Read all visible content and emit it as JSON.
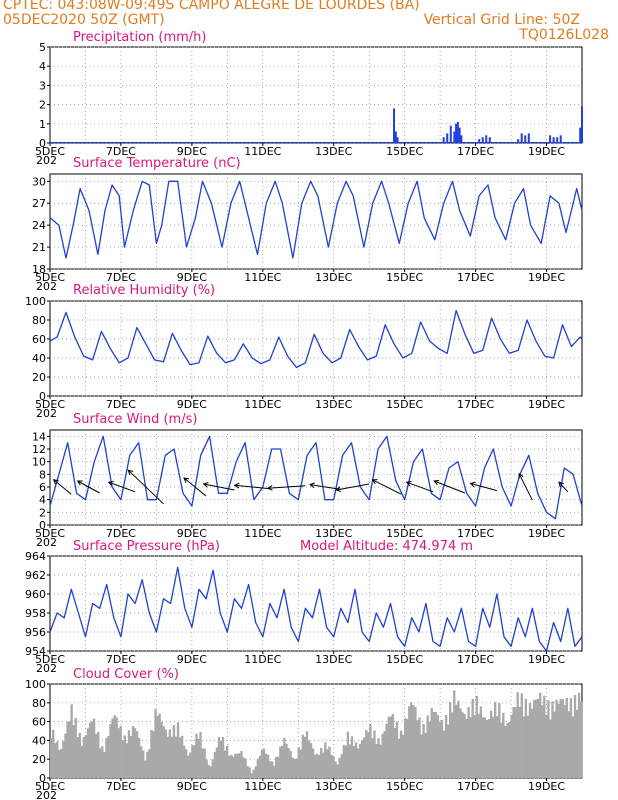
{
  "header": {
    "line1": "CPTEC:   043:08W-09:49S   CAMPO ALEGRE DE LOURDES (BA)",
    "line2_left": "05DEC2020 50Z (GMT)",
    "line2_right": "Vertical Grid Line: 50Z",
    "line3_right": "TQ0126L028"
  },
  "model_altitude_label": "Model Altitude: 474.974 m",
  "x_ticks": [
    "5DEC",
    "7DEC",
    "9DEC",
    "11DEC",
    "13DEC",
    "15DEC",
    "17DEC",
    "19DEC"
  ],
  "x_tick_partial": "202",
  "colors": {
    "header": "#e87a1e",
    "title": "#e2157f",
    "line": "#1f3fe0",
    "bars": "#1f3fe0",
    "cloud": "#a9a9a9"
  },
  "chart_data": [
    {
      "type": "bar",
      "title": "Precipitation (mm/h)",
      "ylim": [
        0,
        5
      ],
      "yticks": [
        "0",
        "1",
        "2",
        "3",
        "4",
        "5"
      ],
      "x": [
        14.7,
        14.75,
        14.8,
        16.1,
        16.2,
        16.3,
        16.4,
        16.45,
        16.5,
        16.55,
        16.6,
        17.1,
        17.2,
        17.3,
        17.4,
        18.2,
        18.3,
        18.4,
        18.5,
        19.1,
        19.2,
        19.3,
        19.4,
        19.95,
        20.0
      ],
      "values": [
        1.8,
        0.6,
        0.3,
        0.3,
        0.5,
        0.9,
        0.6,
        1.0,
        1.1,
        0.8,
        0.4,
        0.2,
        0.3,
        0.4,
        0.3,
        0.2,
        0.5,
        0.4,
        0.5,
        0.4,
        0.3,
        0.3,
        0.4,
        0.8,
        1.9
      ],
      "xlim": [
        5,
        20
      ]
    },
    {
      "type": "line",
      "title": "Surface Temperature (nC)",
      "ylim": [
        18,
        31
      ],
      "yticks": [
        "18",
        "21",
        "24",
        "27",
        "30"
      ],
      "xlim": [
        5,
        20
      ],
      "x": [
        5.0,
        5.25,
        5.45,
        5.65,
        5.85,
        6.1,
        6.35,
        6.55,
        6.75,
        6.95,
        7.1,
        7.35,
        7.6,
        7.8,
        8.0,
        8.15,
        8.35,
        8.6,
        8.85,
        9.1,
        9.3,
        9.55,
        9.85,
        10.1,
        10.35,
        10.55,
        10.85,
        11.1,
        11.35,
        11.55,
        11.85,
        12.1,
        12.35,
        12.55,
        12.85,
        13.1,
        13.35,
        13.55,
        13.85,
        14.1,
        14.35,
        14.55,
        14.85,
        15.1,
        15.35,
        15.55,
        15.85,
        16.1,
        16.35,
        16.55,
        16.85,
        17.1,
        17.35,
        17.55,
        17.85,
        18.1,
        18.35,
        18.55,
        18.85,
        19.1,
        19.35,
        19.55,
        19.85,
        20.0
      ],
      "y": [
        25,
        24,
        19.5,
        24,
        29,
        26,
        20,
        26,
        29.5,
        28,
        21,
        26,
        30,
        29.5,
        21.5,
        24,
        30,
        30,
        21,
        25,
        30,
        27,
        21,
        27,
        30,
        26,
        20,
        27,
        30,
        27,
        19.5,
        27,
        30,
        28,
        21,
        27,
        30,
        28,
        21,
        27,
        30,
        27,
        21.5,
        27,
        30,
        25,
        22,
        27,
        30,
        26,
        22.5,
        28,
        29.5,
        25,
        22,
        27,
        29,
        24,
        21.5,
        28,
        27,
        23,
        29,
        26
      ]
    },
    {
      "type": "line",
      "title": "Relative Humidity (%)",
      "ylim": [
        0,
        100
      ],
      "yticks": [
        "0",
        "20",
        "40",
        "60",
        "80",
        "100"
      ],
      "xlim": [
        5,
        20
      ],
      "x": [
        5.0,
        5.2,
        5.45,
        5.7,
        5.95,
        6.2,
        6.45,
        6.7,
        6.95,
        7.2,
        7.45,
        7.7,
        7.95,
        8.2,
        8.45,
        8.7,
        8.95,
        9.2,
        9.45,
        9.7,
        9.95,
        10.2,
        10.45,
        10.7,
        10.95,
        11.2,
        11.45,
        11.7,
        11.95,
        12.2,
        12.45,
        12.7,
        12.95,
        13.2,
        13.45,
        13.7,
        13.95,
        14.2,
        14.45,
        14.7,
        14.95,
        15.2,
        15.45,
        15.7,
        15.95,
        16.2,
        16.45,
        16.7,
        16.95,
        17.2,
        17.45,
        17.7,
        17.95,
        18.2,
        18.45,
        18.7,
        18.95,
        19.2,
        19.45,
        19.7,
        19.95,
        20.0
      ],
      "y": [
        58,
        62,
        88,
        62,
        42,
        38,
        68,
        50,
        35,
        40,
        72,
        55,
        38,
        36,
        66,
        48,
        33,
        35,
        63,
        45,
        35,
        38,
        55,
        40,
        34,
        38,
        62,
        42,
        30,
        35,
        65,
        45,
        35,
        40,
        70,
        52,
        38,
        42,
        75,
        55,
        40,
        45,
        78,
        58,
        50,
        45,
        90,
        65,
        45,
        48,
        82,
        60,
        45,
        48,
        80,
        58,
        42,
        40,
        75,
        52,
        62,
        60
      ]
    },
    {
      "type": "line",
      "title": "Surface Wind (m/s)",
      "ylim": [
        0,
        15
      ],
      "yticks": [
        "0",
        "2",
        "4",
        "6",
        "8",
        "10",
        "12",
        "14"
      ],
      "xlim": [
        5,
        20
      ],
      "x": [
        5.0,
        5.25,
        5.5,
        5.75,
        6.0,
        6.25,
        6.5,
        6.75,
        7.0,
        7.25,
        7.5,
        7.75,
        8.0,
        8.25,
        8.5,
        8.75,
        9.0,
        9.25,
        9.5,
        9.75,
        10.0,
        10.25,
        10.5,
        10.75,
        11.0,
        11.25,
        11.5,
        11.75,
        12.0,
        12.25,
        12.5,
        12.75,
        13.0,
        13.25,
        13.5,
        13.75,
        14.0,
        14.25,
        14.5,
        14.75,
        15.0,
        15.25,
        15.5,
        15.75,
        16.0,
        16.25,
        16.5,
        16.75,
        17.0,
        17.25,
        17.5,
        17.75,
        18.0,
        18.25,
        18.5,
        18.75,
        19.0,
        19.25,
        19.5,
        19.75,
        20.0
      ],
      "y": [
        3,
        8,
        13,
        5,
        4,
        10,
        14,
        6,
        4,
        11,
        13,
        4,
        4,
        11,
        12,
        5,
        3,
        11,
        14,
        5,
        5,
        10,
        13,
        4,
        6,
        12,
        12,
        5,
        4,
        11,
        13,
        4,
        4,
        11,
        13,
        6,
        4,
        12,
        14,
        7,
        4,
        10,
        12,
        5,
        4,
        9,
        10,
        5,
        3,
        9,
        12,
        6,
        3,
        8,
        11,
        5,
        2,
        1,
        9,
        8,
        3
      ],
      "arrows": [
        {
          "x": 5.6,
          "dx": 0.8,
          "dy": -1.2
        },
        {
          "x": 6.4,
          "dx": 1.0,
          "dy": -1.0
        },
        {
          "x": 7.4,
          "dx": 1.2,
          "dy": -0.8
        },
        {
          "x": 8.2,
          "dx": 1.6,
          "dy": -2.8
        },
        {
          "x": 9.4,
          "dx": 1.0,
          "dy": -1.5
        },
        {
          "x": 10.2,
          "dx": 1.4,
          "dy": -0.5
        },
        {
          "x": 11.2,
          "dx": 1.6,
          "dy": -0.3
        },
        {
          "x": 12.2,
          "dx": 1.7,
          "dy": 0.2
        },
        {
          "x": 13.2,
          "dx": 1.4,
          "dy": -0.4
        },
        {
          "x": 14.0,
          "dx": 1.5,
          "dy": 0.5
        },
        {
          "x": 14.9,
          "dx": 1.3,
          "dy": -1.2
        },
        {
          "x": 15.8,
          "dx": 1.2,
          "dy": -0.8
        },
        {
          "x": 16.7,
          "dx": 1.4,
          "dy": -1.0
        },
        {
          "x": 17.6,
          "dx": 1.2,
          "dy": -0.6
        },
        {
          "x": 18.6,
          "dx": 0.6,
          "dy": -2.2
        },
        {
          "x": 19.6,
          "dx": 0.4,
          "dy": -0.8
        }
      ]
    },
    {
      "type": "line",
      "title": "Surface Pressure (hPa)",
      "ylim": [
        954,
        964
      ],
      "yticks": [
        "954",
        "956",
        "958",
        "960",
        "962",
        "964"
      ],
      "xlim": [
        5,
        20
      ],
      "x": [
        5.0,
        5.2,
        5.4,
        5.6,
        5.8,
        6.0,
        6.2,
        6.4,
        6.6,
        6.8,
        7.0,
        7.2,
        7.4,
        7.6,
        7.8,
        8.0,
        8.2,
        8.4,
        8.6,
        8.8,
        9.0,
        9.2,
        9.4,
        9.6,
        9.8,
        10.0,
        10.2,
        10.4,
        10.6,
        10.8,
        11.0,
        11.2,
        11.4,
        11.6,
        11.8,
        12.0,
        12.2,
        12.4,
        12.6,
        12.8,
        13.0,
        13.2,
        13.4,
        13.6,
        13.8,
        14.0,
        14.2,
        14.4,
        14.6,
        14.8,
        15.0,
        15.2,
        15.4,
        15.6,
        15.8,
        16.0,
        16.2,
        16.4,
        16.6,
        16.8,
        17.0,
        17.2,
        17.4,
        17.6,
        17.8,
        18.0,
        18.2,
        18.4,
        18.6,
        18.8,
        19.0,
        19.2,
        19.4,
        19.6,
        19.8,
        20.0
      ],
      "y": [
        956,
        958,
        957.5,
        960.5,
        958,
        955.5,
        959,
        958.5,
        961,
        957.5,
        955.5,
        960,
        959,
        961.5,
        958,
        956,
        959.5,
        959,
        962.8,
        958.5,
        956.5,
        960.5,
        959.5,
        962.5,
        958,
        956,
        959.5,
        958.5,
        961,
        957,
        955.5,
        959,
        957.5,
        960.5,
        956.5,
        955,
        958.5,
        957.5,
        960.5,
        956.5,
        955.5,
        958.5,
        957,
        960.5,
        956,
        955,
        958,
        956.5,
        959,
        955.5,
        954.5,
        957.5,
        956,
        959,
        955,
        954.5,
        957.5,
        956,
        958.5,
        955,
        954.5,
        958.5,
        956.5,
        960,
        955.5,
        954.5,
        957.5,
        955.5,
        958.5,
        955,
        954,
        957,
        955,
        958.5,
        954.5,
        955.5
      ]
    },
    {
      "type": "bar",
      "title": "Cloud Cover (%)",
      "ylim": [
        0,
        100
      ],
      "yticks": [
        "0",
        "20",
        "40",
        "60",
        "80",
        "100"
      ],
      "xlim": [
        5,
        20
      ],
      "profile_x": [
        5.0,
        5.3,
        5.6,
        5.9,
        6.2,
        6.5,
        6.8,
        7.1,
        7.4,
        7.7,
        8.0,
        8.3,
        8.6,
        8.9,
        9.2,
        9.5,
        9.8,
        10.1,
        10.4,
        10.7,
        11.0,
        11.3,
        11.6,
        11.9,
        12.2,
        12.5,
        12.8,
        13.1,
        13.4,
        13.7,
        14.0,
        14.3,
        14.6,
        14.9,
        15.2,
        15.5,
        15.8,
        16.1,
        16.4,
        16.7,
        17.0,
        17.3,
        17.6,
        17.9,
        18.2,
        18.5,
        18.8,
        19.1,
        19.4,
        19.7,
        20.0
      ],
      "profile_y": [
        60,
        30,
        80,
        40,
        70,
        30,
        75,
        45,
        60,
        20,
        80,
        50,
        60,
        25,
        55,
        10,
        50,
        25,
        30,
        5,
        35,
        15,
        45,
        20,
        55,
        25,
        40,
        15,
        50,
        35,
        60,
        40,
        75,
        50,
        90,
        55,
        80,
        60,
        95,
        70,
        90,
        65,
        85,
        60,
        95,
        80,
        95,
        80,
        90,
        85,
        95
      ]
    }
  ]
}
